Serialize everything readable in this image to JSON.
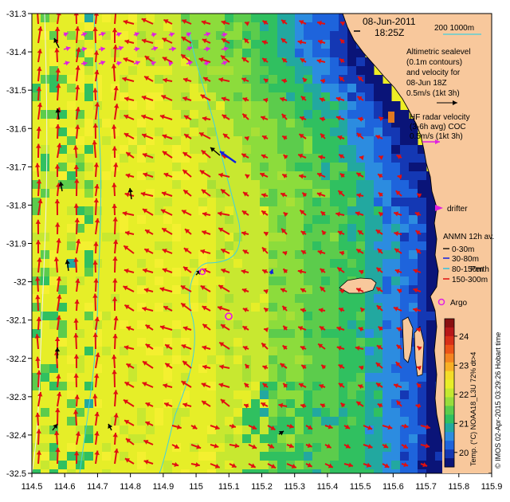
{
  "map": {
    "lon_range": [
      114.5,
      115.9
    ],
    "lat_range": [
      -32.5,
      -31.3
    ],
    "x_ticks": [
      "114.5",
      "114.6",
      "114.7",
      "114.8",
      "114.9",
      "115",
      "115.1",
      "115.2",
      "115.3",
      "115.4",
      "115.5",
      "115.6",
      "115.7",
      "115.8",
      "115.9"
    ],
    "y_ticks": [
      "-31.3",
      "-31.4",
      "-31.5",
      "-31.6",
      "-31.7",
      "-31.8",
      "-31.9",
      "-32",
      "-32.1",
      "-32.2",
      "-32.3",
      "-32.4",
      "-32.5"
    ],
    "colors": {
      "land": "#F8C89C",
      "warm_sst": "#F0F020",
      "mid_sst": "#8CDC3C",
      "cool_sst": "#30C060",
      "cold_sst": "#1E64DC",
      "deep": "#0A1478",
      "contour": "#40D0E0",
      "altimetric_vector": "#E01010",
      "hf_radar": "#E020E0",
      "anmn_0_30": "#000000",
      "anmn_30_80": "#1020E0",
      "anmn_80_150": "#30C0E0",
      "anmn_150_300": "#E01010"
    }
  },
  "header": {
    "date": "08-Jun-2011",
    "time": "18:25Z",
    "scale_label": "200  1000m"
  },
  "legend": {
    "altimetric_lines": [
      "Altimetric sealevel",
      "(0.1m contours)",
      "and velocity for",
      "08-Jun 18Z"
    ],
    "altimetric_scale": "0.5m/s (1kt 3h)",
    "hf_radar_lines": [
      "HF radar velocity",
      "(3-6h avg) COC",
      "0.5m/s (1kt 3h)"
    ],
    "drifter": "drifter",
    "anmn_title": "ANMN 12h av.",
    "anmn_items": [
      "0-30m",
      "30-80m",
      "80-150m",
      "150-300m"
    ],
    "perth": "Perth",
    "argo": "Argo"
  },
  "colorbar": {
    "title": "Temp. (°C) NOAA18_L3U 72% dt>4",
    "ticks": [
      "24",
      "23",
      "22",
      "21",
      "20"
    ],
    "min": 19.5,
    "max": 24.6
  },
  "credit": "© IMOS 02-Apr-2015 03:29:26 Hobart time",
  "buoys": [
    {
      "lon": 115.03,
      "lat": -31.96
    },
    {
      "lon": 115.1,
      "lat": -32.07
    }
  ]
}
